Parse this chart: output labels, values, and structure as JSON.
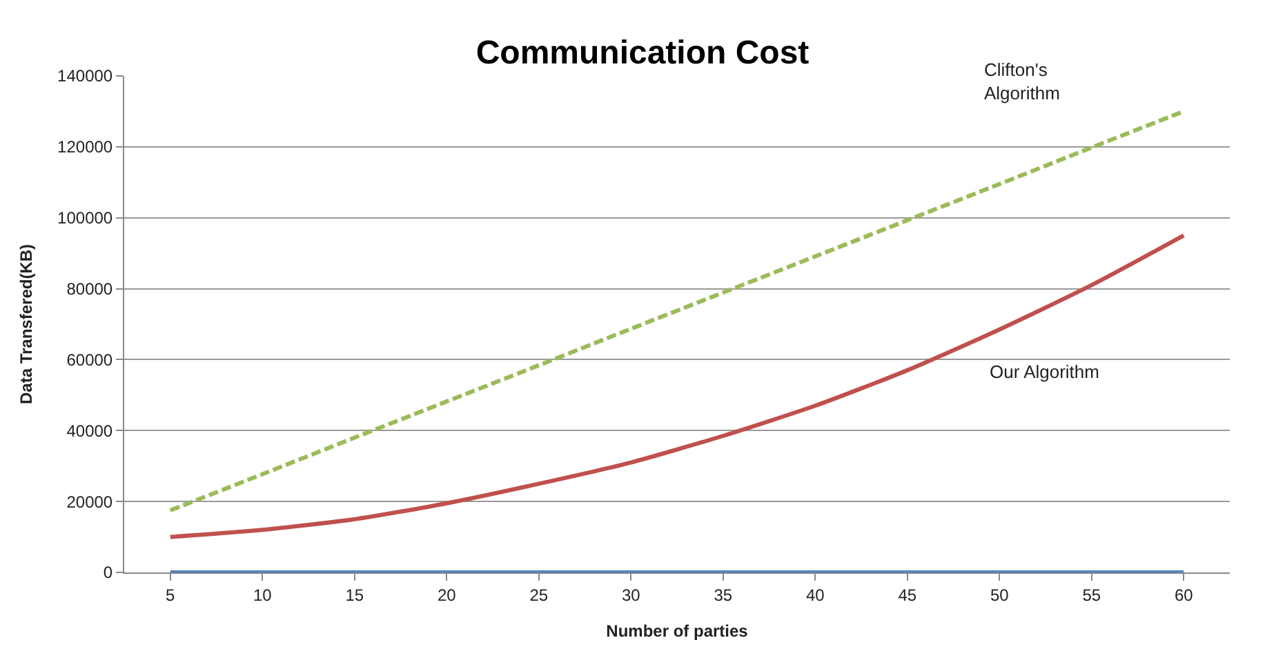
{
  "chart_data": {
    "type": "line",
    "title": "Communication Cost",
    "xlabel": "Number of parties",
    "ylabel": "Data Transfered(KB)",
    "categories": [
      "5",
      "10",
      "15",
      "20",
      "25",
      "30",
      "35",
      "40",
      "45",
      "50",
      "55",
      "60"
    ],
    "series": [
      {
        "color": "#4f81bd",
        "line_style": "solid",
        "values": [
          0,
          0,
          0,
          0,
          0,
          0,
          0,
          0,
          0,
          0,
          0,
          0
        ]
      },
      {
        "color": "#c0504d",
        "line_style": "solid",
        "values": [
          10000,
          12000,
          15000,
          19500,
          25000,
          31000,
          38500,
          47000,
          57000,
          68500,
          81000,
          95000
        ]
      },
      {
        "color": "#9bbb59",
        "line_style": "dashed",
        "values": [
          17500,
          27700,
          38000,
          48200,
          58400,
          68700,
          78900,
          89100,
          99300,
          109500,
          119800,
          130000
        ]
      }
    ],
    "annotations": [
      "Clifton's\nAlgorithm",
      "Our Algorithm"
    ],
    "ylim": [
      0,
      140000
    ],
    "yticks": [
      0,
      20000,
      40000,
      60000,
      80000,
      100000,
      120000,
      140000
    ],
    "grid": "y",
    "marker": "none"
  }
}
